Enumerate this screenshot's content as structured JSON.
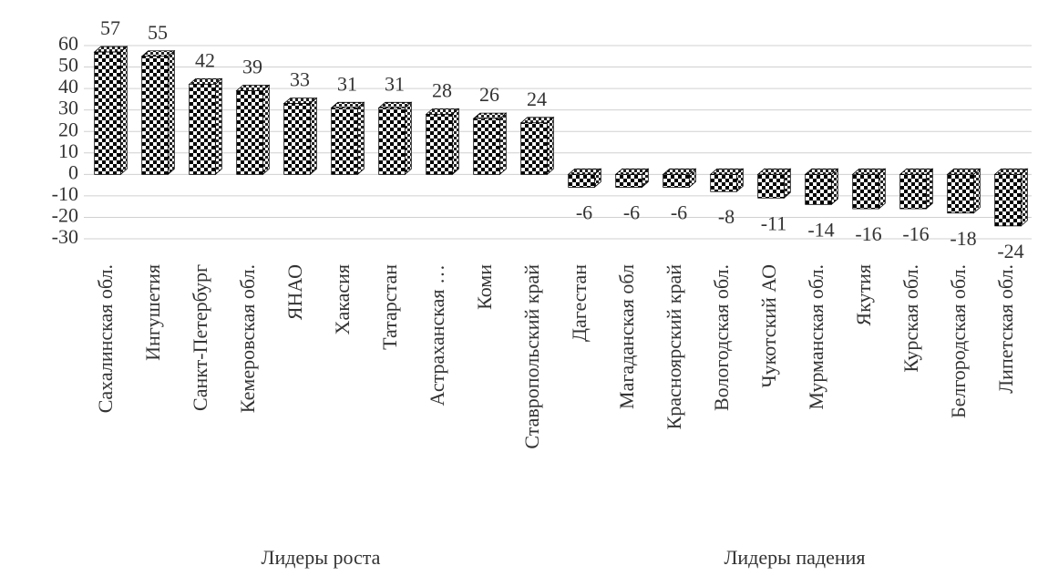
{
  "chart_data": {
    "type": "bar",
    "categories": [
      "Сахалинская обл.",
      "Ингушетия",
      "Санкт-Петербург",
      "Кемеровская обл.",
      "ЯНАО",
      "Хакасия",
      "Татарстан",
      "Астраханская …",
      "Коми",
      "Ставропольский край",
      "Дагестан",
      "Магаданская обл",
      "Красноярский край",
      "Вологодская обл.",
      "Чукотский АО",
      "Мурманская обл.",
      "Якутия",
      "Курская обл.",
      "Белгородская обл.",
      "Липетская обл."
    ],
    "values": [
      57,
      55,
      42,
      39,
      33,
      31,
      31,
      28,
      26,
      24,
      -6,
      -6,
      -6,
      -8,
      -11,
      -14,
      -16,
      -16,
      -18,
      -24
    ],
    "group_labels": [
      "Лидеры роста",
      "Лидеры падения"
    ],
    "color": "#000000",
    "ylim": [
      -30,
      60
    ],
    "yticks": [
      -30,
      -20,
      -10,
      0,
      10,
      20,
      30,
      40,
      50,
      60
    ],
    "grid": true
  }
}
